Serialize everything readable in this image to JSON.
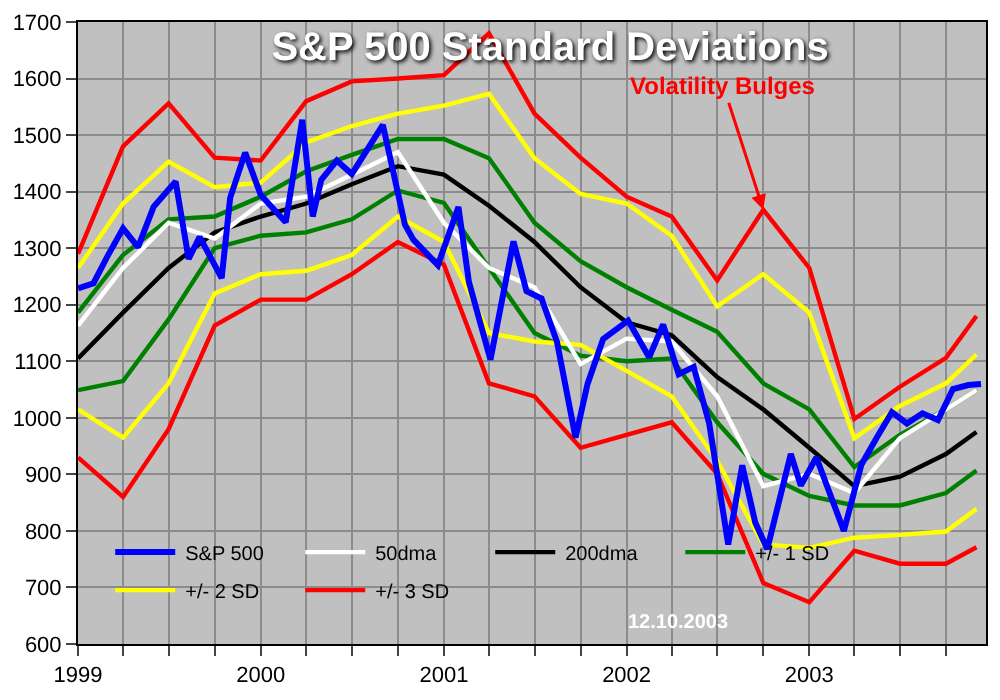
{
  "chart_data": {
    "type": "line",
    "title": "S&P 500 Standard Deviations",
    "x": [
      "1999-01-01",
      "1999-04-01",
      "1999-07-01",
      "1999-10-01",
      "2000-01-01",
      "2000-04-01",
      "2000-07-01",
      "2000-10-01",
      "2001-01-01",
      "2001-04-01",
      "2001-07-01",
      "2001-10-01",
      "2002-01-01",
      "2002-04-01",
      "2002-07-01",
      "2002-10-01",
      "2003-01-01",
      "2003-04-01",
      "2003-07-01",
      "2003-10-01",
      "2003-12-01"
    ],
    "series": [
      {
        "name": "+/- 3 SD",
        "color": "#ff0000",
        "values": [
          1290,
          1480,
          1556,
          1460,
          1455,
          1560,
          1595,
          1600,
          1606,
          1680,
          1538,
          1460,
          1391,
          1356,
          1243,
          1368,
          1265,
          998,
          1055,
          1106,
          1180
        ]
      },
      {
        "name": "+/- 2 SD",
        "color": "#ffff00",
        "values": [
          1265,
          1379,
          1453,
          1408,
          1416,
          1487,
          1516,
          1538,
          1552,
          1573,
          1459,
          1396,
          1379,
          1322,
          1197,
          1254,
          1186,
          964,
          1021,
          1061,
          1112
        ]
      },
      {
        "name": "+/- 1 SD",
        "color": "#008000",
        "values": [
          1186,
          1288,
          1351,
          1356,
          1391,
          1436,
          1465,
          1493,
          1493,
          1459,
          1345,
          1277,
          1231,
          1191,
          1152,
          1061,
          1015,
          913,
          970,
          1015,
          1049
        ]
      },
      {
        "color": "#008000",
        "values": [
          1049,
          1065,
          1174,
          1300,
          1322,
          1328,
          1351,
          1402,
          1380,
          1265,
          1150,
          1110,
          1100,
          1105,
          992,
          901,
          862,
          845,
          845,
          867,
          907
        ]
      },
      {
        "color": "#ffff00",
        "values": [
          1015,
          965,
          1061,
          1220,
          1254,
          1260,
          1288,
          1356,
          1311,
          1150,
          1135,
          1129,
          1083,
          1038,
          924,
          776,
          770,
          788,
          793,
          799,
          839
        ]
      },
      {
        "color": "#ff0000",
        "values": [
          930,
          860,
          980,
          1163,
          1209,
          1209,
          1254,
          1311,
          1271,
          1061,
          1038,
          947,
          970,
          992,
          901,
          708,
          674,
          765,
          742,
          742,
          771
        ]
      },
      {
        "name": "200dma",
        "color": "#000000",
        "values": [
          1105,
          1186,
          1265,
          1328,
          1356,
          1379,
          1413,
          1445,
          1430,
          1375,
          1311,
          1231,
          1169,
          1146,
          1072,
          1015,
          947,
          879,
          896,
          936,
          975
        ]
      },
      {
        "name": "50dma",
        "color": "#ffffff",
        "values": [
          1163,
          1265,
          1345,
          1317,
          1379,
          1391,
          1430,
          1470,
          1345,
          1265,
          1231,
          1095,
          1140,
          1135,
          1038,
          879,
          901,
          867,
          964,
          1015,
          1049
        ]
      },
      {
        "name": "S&P 500",
        "color": "#0000ff",
        "x": [
          "1999-01-01",
          "1999-02-01",
          "1999-03-01",
          "1999-04-01",
          "1999-05-01",
          "1999-06-01",
          "1999-07-15",
          "1999-08-10",
          "1999-09-01",
          "1999-10-15",
          "1999-11-01",
          "1999-12-01",
          "2000-01-01",
          "2000-02-20",
          "2000-03-24",
          "2000-04-14",
          "2000-05-01",
          "2000-06-01",
          "2000-07-01",
          "2000-09-01",
          "2000-10-15",
          "2000-11-01",
          "2000-12-20",
          "2001-01-30",
          "2001-02-20",
          "2001-04-04",
          "2001-05-20",
          "2001-06-15",
          "2001-07-15",
          "2001-08-15",
          "2001-09-21",
          "2001-10-15",
          "2001-11-15",
          "2002-01-04",
          "2002-02-15",
          "2002-03-15",
          "2002-04-15",
          "2002-05-15",
          "2002-06-15",
          "2002-07-23",
          "2002-08-20",
          "2002-09-15",
          "2002-10-09",
          "2002-11-25",
          "2002-12-15",
          "2003-01-15",
          "2003-03-11",
          "2003-04-15",
          "2003-05-15",
          "2003-06-15",
          "2003-07-15",
          "2003-08-15",
          "2003-09-15",
          "2003-10-15",
          "2003-11-15",
          "2003-12-10"
        ],
        "values": [
          1229,
          1238,
          1286,
          1335,
          1302,
          1373,
          1418,
          1281,
          1320,
          1247,
          1389,
          1469,
          1394,
          1346,
          1527,
          1356,
          1421,
          1455,
          1431,
          1518,
          1342,
          1315,
          1270,
          1373,
          1240,
          1103,
          1312,
          1224,
          1211,
          1134,
          965,
          1060,
          1139,
          1172,
          1107,
          1165,
          1077,
          1090,
          990,
          776,
          916,
          815,
          768,
          936,
          880,
          930,
          800,
          917,
          964,
          1010,
          990,
          1008,
          996,
          1051,
          1058,
          1060
        ]
      }
    ],
    "xlim": [
      "1999-01-01",
      "2003-12-20"
    ],
    "xticks": [
      {
        "value": "1999-01-01",
        "label": "1999"
      },
      {
        "value": "1999-04-01",
        "label": null
      },
      {
        "value": "1999-07-01",
        "label": null
      },
      {
        "value": "1999-10-01",
        "label": null
      },
      {
        "value": "2000-01-01",
        "label": "2000"
      },
      {
        "value": "2000-04-01",
        "label": null
      },
      {
        "value": "2000-07-01",
        "label": null
      },
      {
        "value": "2000-10-01",
        "label": null
      },
      {
        "value": "2001-01-01",
        "label": "2001"
      },
      {
        "value": "2001-04-01",
        "label": null
      },
      {
        "value": "2001-07-01",
        "label": null
      },
      {
        "value": "2001-10-01",
        "label": null
      },
      {
        "value": "2002-01-01",
        "label": "2002"
      },
      {
        "value": "2002-04-01",
        "label": null
      },
      {
        "value": "2002-07-01",
        "label": null
      },
      {
        "value": "2002-10-01",
        "label": null
      },
      {
        "value": "2003-01-01",
        "label": "2003"
      },
      {
        "value": "2003-04-01",
        "label": null
      },
      {
        "value": "2003-07-01",
        "label": null
      },
      {
        "value": "2003-10-01",
        "label": null
      }
    ],
    "ylim": [
      600,
      1700
    ],
    "yticks": [
      600,
      700,
      800,
      900,
      1000,
      1100,
      1200,
      1300,
      1400,
      1500,
      1600,
      1700
    ],
    "grid": true,
    "legend": "bottom left",
    "marker": "none",
    "line_style": "solid",
    "annotations": [
      {
        "text": "Volatility Bulges",
        "x": "2002-10-01",
        "y": 1368
      },
      "12.10.2003"
    ]
  }
}
